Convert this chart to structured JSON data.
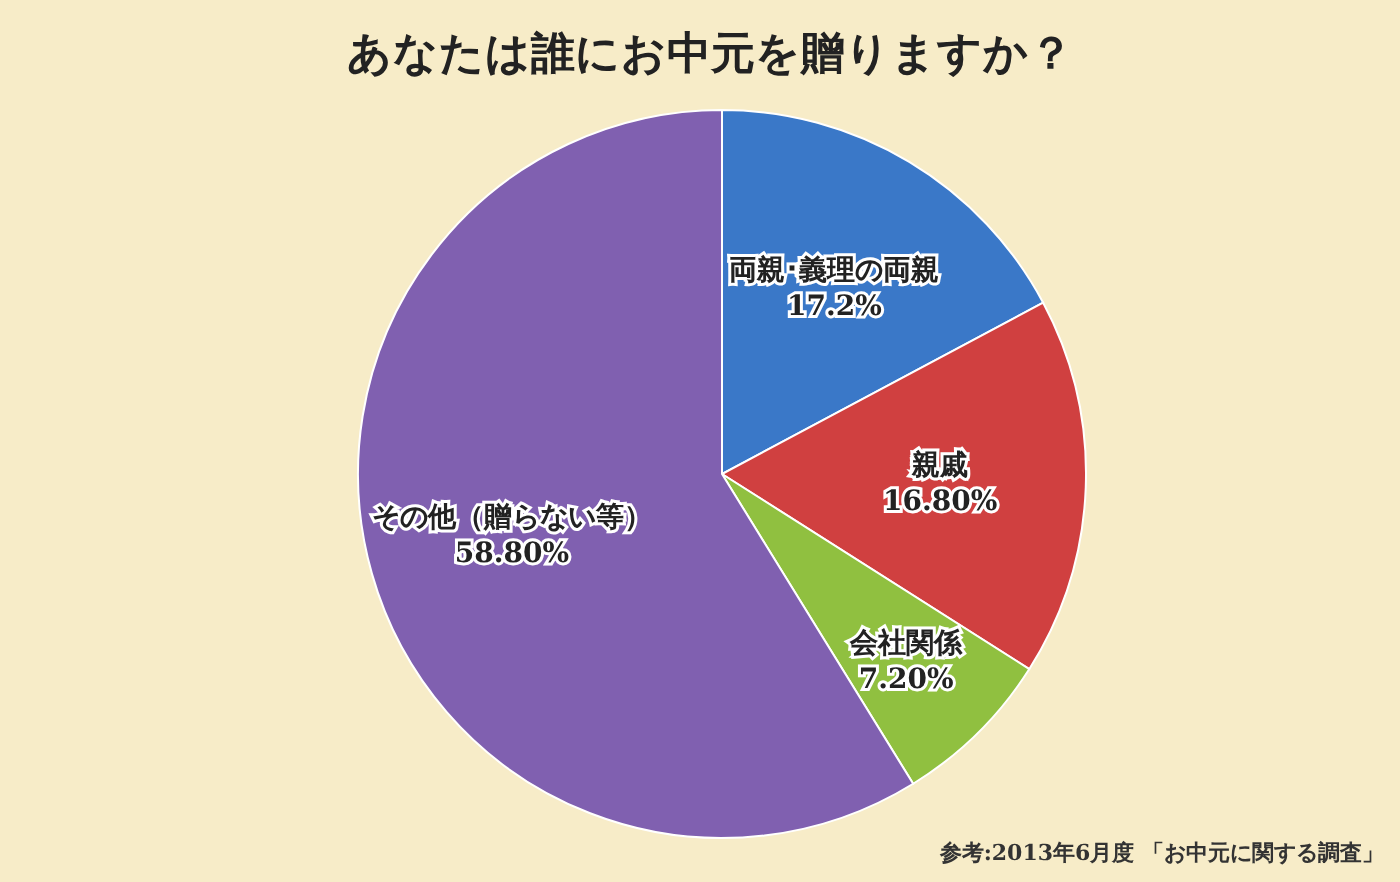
{
  "chart_data": {
    "type": "pie",
    "title": "あなたは誰にお中元を贈りますか？",
    "categories": [
      "両親･義理の両親",
      "親戚",
      "会社関係",
      "その他（贈らない等）"
    ],
    "values": [
      17.2,
      16.8,
      7.2,
      58.8
    ],
    "colors": [
      "#3a78c8",
      "#d04040",
      "#90c040",
      "#8060b0"
    ],
    "value_labels": [
      "17.2%",
      "16.80%",
      "7.20%",
      "58.80%"
    ],
    "annotations": [
      "参考:2013年6月度 「お中元に関する調査」"
    ]
  }
}
